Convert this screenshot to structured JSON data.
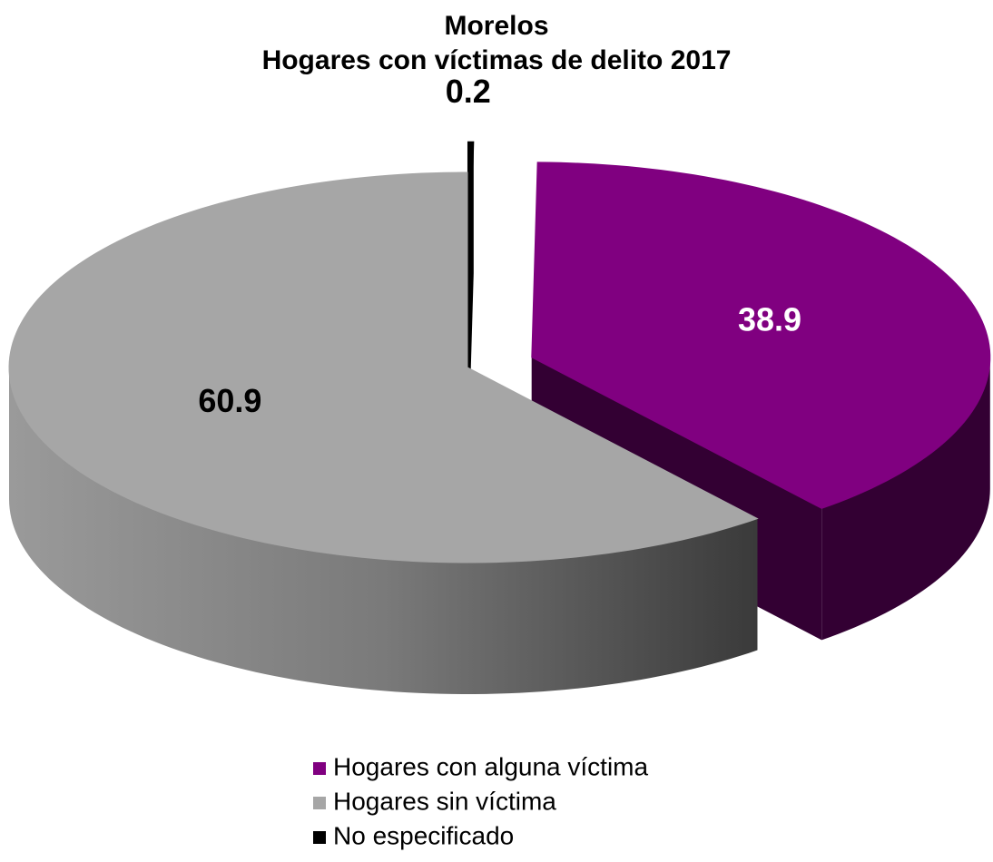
{
  "chart_data": {
    "type": "pie",
    "title": "Morelos",
    "subtitle": "Hogares con víctimas de delito 2017",
    "categories": [
      "No especificado",
      "Hogares con alguna víctima",
      "Hogares sin víctima"
    ],
    "values": [
      0.2,
      38.9,
      60.9
    ],
    "colors": [
      "#000000",
      "#800080",
      "#a6a6a6"
    ],
    "legend": "bottom",
    "legend_order": [
      1,
      2,
      0
    ]
  }
}
